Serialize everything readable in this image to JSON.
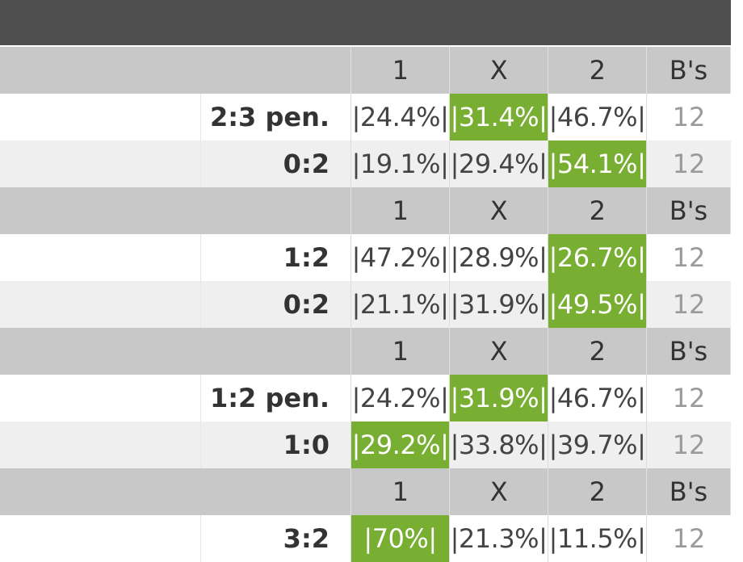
{
  "header": {
    "col1": "1",
    "colX": "X",
    "col2": "2",
    "colBs": "B's"
  },
  "colors": {
    "topbar": "#505050",
    "highlight": "#78ae32",
    "header_row": "#c8c8c8"
  },
  "groups": [
    {
      "matches": [
        {
          "score": "2:3 pen.",
          "odds": [
            "|24.4%|",
            "|31.4%|",
            "|46.7%|"
          ],
          "highlight": 1,
          "bookmakers": "12"
        },
        {
          "score": "0:2",
          "odds": [
            "|19.1%|",
            "|29.4%|",
            "|54.1%|"
          ],
          "highlight": 2,
          "bookmakers": "12"
        }
      ]
    },
    {
      "matches": [
        {
          "score": "1:2",
          "odds": [
            "|47.2%|",
            "|28.9%|",
            "|26.7%|"
          ],
          "highlight": 2,
          "bookmakers": "12"
        },
        {
          "score": "0:2",
          "odds": [
            "|21.1%|",
            "|31.9%|",
            "|49.5%|"
          ],
          "highlight": 2,
          "bookmakers": "12"
        }
      ]
    },
    {
      "matches": [
        {
          "score": "1:2 pen.",
          "odds": [
            "|24.2%|",
            "|31.9%|",
            "|46.7%|"
          ],
          "highlight": 1,
          "bookmakers": "12"
        },
        {
          "score": "1:0",
          "odds": [
            "|29.2%|",
            "|33.8%|",
            "|39.7%|"
          ],
          "highlight": 0,
          "bookmakers": "12"
        }
      ]
    },
    {
      "matches": [
        {
          "score": "3:2",
          "odds": [
            "|70%|",
            "|21.3%|",
            "|11.5%|"
          ],
          "highlight": 0,
          "bookmakers": "12"
        }
      ]
    }
  ]
}
